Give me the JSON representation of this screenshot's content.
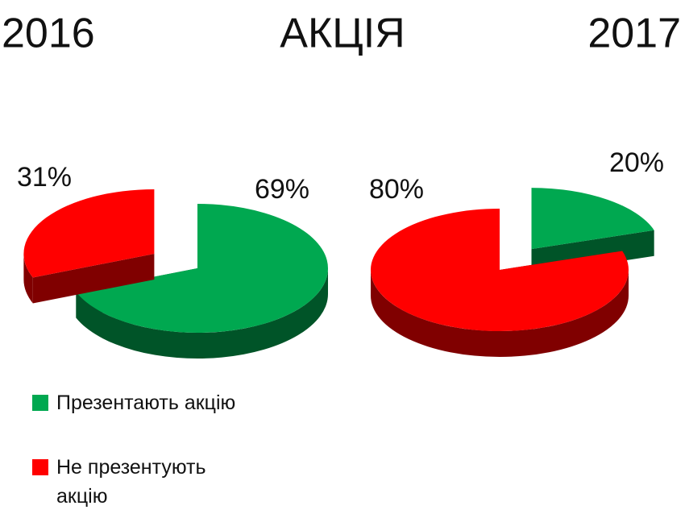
{
  "title": "АКЦІЯ",
  "chart_data": [
    {
      "type": "pie",
      "title": "2016",
      "categories": [
        "Презентають акцію",
        "Не презентують акцію"
      ],
      "values": [
        69,
        31
      ],
      "value_labels": [
        "69%",
        "31%"
      ],
      "colors": [
        "#00a850",
        "#ff0000"
      ]
    },
    {
      "type": "pie",
      "title": "2017",
      "categories": [
        "Презентають акцію",
        "Не презентують акцію"
      ],
      "values": [
        20,
        80
      ],
      "value_labels": [
        "20%",
        "80%"
      ],
      "colors": [
        "#00a850",
        "#ff0000"
      ]
    }
  ]
}
